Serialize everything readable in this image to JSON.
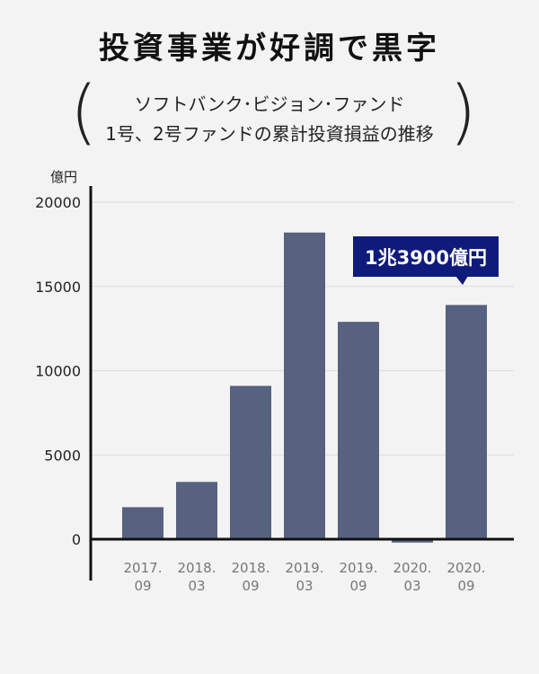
{
  "title": "投資事業が好調で黒字",
  "subtitle": {
    "line1": "ソフトバンク･ビジョン･ファンド",
    "line2": "1号、2号ファンドの累計投資損益の推移"
  },
  "paren_left": "(",
  "paren_right": ")",
  "colors": {
    "bar": "#56627f",
    "callout": "#0f1b7a",
    "axis": "#111111",
    "grid": "#dddddd",
    "background": "#f3f3f3"
  },
  "chart_data": {
    "type": "bar",
    "unit_label": "億円",
    "categories": [
      [
        "2017.",
        "09"
      ],
      [
        "2018.",
        "03"
      ],
      [
        "2018.",
        "09"
      ],
      [
        "2019.",
        "03"
      ],
      [
        "2019.",
        "09"
      ],
      [
        "2020.",
        "03"
      ],
      [
        "2020.",
        "09"
      ]
    ],
    "values": [
      1900,
      3400,
      9100,
      18200,
      12900,
      -200,
      13900
    ],
    "ylim": [
      -2500,
      21000
    ],
    "yticks": [
      0,
      5000,
      10000,
      15000,
      20000
    ],
    "grid": true,
    "annotation": {
      "text": "1兆3900億円",
      "category_index": 6
    }
  }
}
